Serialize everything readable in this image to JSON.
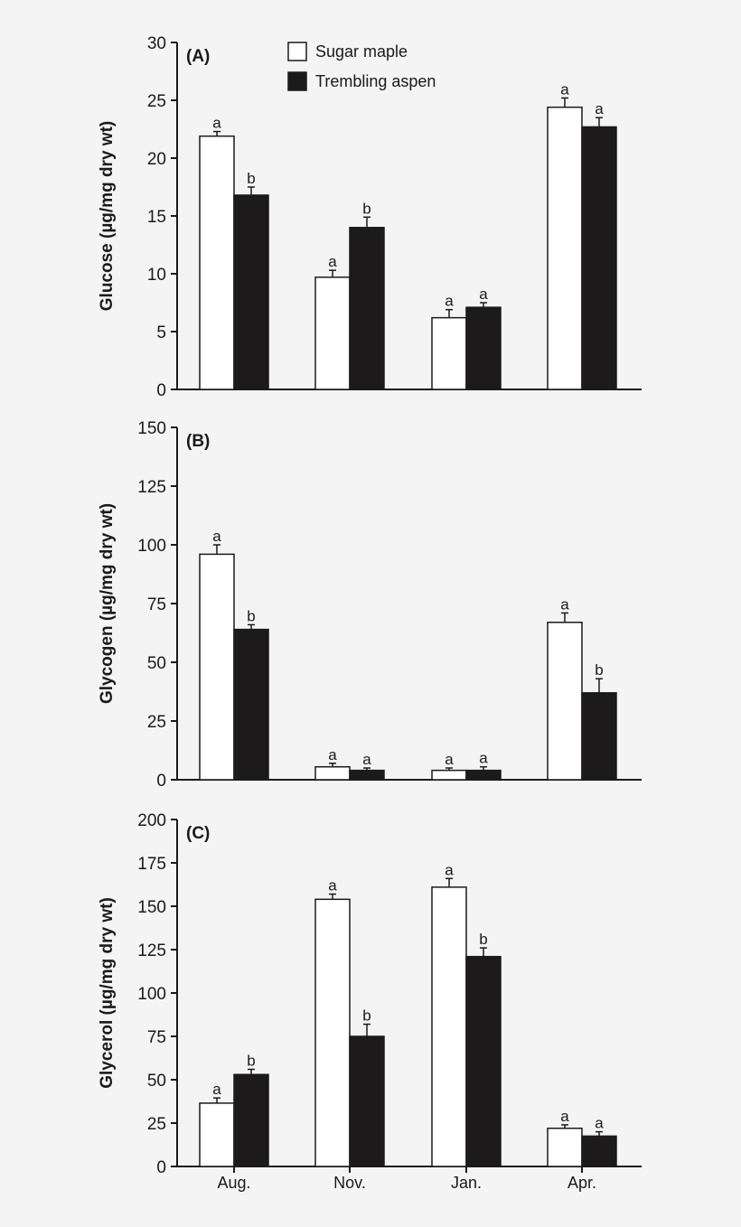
{
  "chart_data": [
    {
      "type": "bar",
      "panel_label": "(A)",
      "ylabel": "Glucose (µg/mg dry wt)",
      "categories": [
        "Aug.",
        "Nov.",
        "Jan.",
        "Apr."
      ],
      "ylim": [
        0,
        30
      ],
      "yticks": [
        0,
        5,
        10,
        15,
        20,
        25,
        30
      ],
      "series": [
        {
          "name": "Sugar maple",
          "color": "#ffffff",
          "values": [
            21.9,
            9.7,
            6.2,
            24.4
          ],
          "errors": [
            0.4,
            0.6,
            0.7,
            0.8
          ],
          "letters": [
            "a",
            "a",
            "a",
            "a"
          ]
        },
        {
          "name": "Trembling aspen",
          "color": "#1c1a1b",
          "values": [
            16.8,
            14.0,
            7.1,
            22.7
          ],
          "errors": [
            0.7,
            0.9,
            0.4,
            0.8
          ],
          "letters": [
            "b",
            "b",
            "a",
            "a"
          ]
        }
      ],
      "legend": "top-center"
    },
    {
      "type": "bar",
      "panel_label": "(B)",
      "ylabel": "Glycogen (µg/mg dry wt)",
      "categories": [
        "Aug.",
        "Nov.",
        "Jan.",
        "Apr."
      ],
      "ylim": [
        0,
        150
      ],
      "yticks": [
        0,
        25,
        50,
        75,
        100,
        125,
        150
      ],
      "series": [
        {
          "name": "Sugar maple",
          "color": "#ffffff",
          "values": [
            96,
            5.5,
            4,
            67
          ],
          "errors": [
            4,
            1.5,
            1,
            4
          ],
          "letters": [
            "a",
            "a",
            "a",
            "a"
          ]
        },
        {
          "name": "Trembling aspen",
          "color": "#1c1a1b",
          "values": [
            64,
            4,
            4,
            37
          ],
          "errors": [
            2,
            1,
            1.5,
            6
          ],
          "letters": [
            "b",
            "a",
            "a",
            "b"
          ]
        }
      ]
    },
    {
      "type": "bar",
      "panel_label": "(C)",
      "ylabel": "Glycerol (µg/mg dry wt)",
      "categories": [
        "Aug.",
        "Nov.",
        "Jan.",
        "Apr."
      ],
      "ylim": [
        0,
        200
      ],
      "yticks": [
        0,
        25,
        50,
        75,
        100,
        125,
        150,
        175,
        200
      ],
      "series": [
        {
          "name": "Sugar maple",
          "color": "#ffffff",
          "values": [
            36.5,
            154,
            161,
            22
          ],
          "errors": [
            3,
            3,
            5,
            2
          ],
          "letters": [
            "a",
            "a",
            "a",
            "a"
          ]
        },
        {
          "name": "Trembling aspen",
          "color": "#1c1a1b",
          "values": [
            53,
            75,
            121,
            17.5
          ],
          "errors": [
            3,
            7,
            5,
            2.5
          ],
          "letters": [
            "b",
            "b",
            "b",
            "a"
          ]
        }
      ]
    }
  ]
}
